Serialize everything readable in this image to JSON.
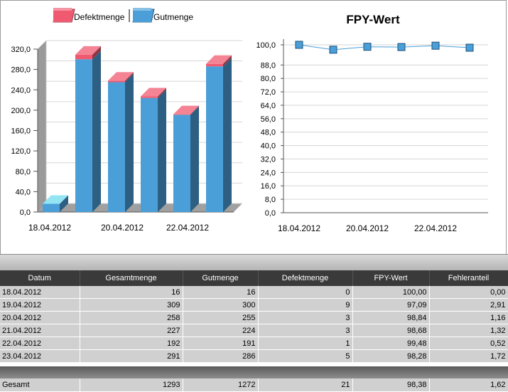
{
  "chart_data": [
    {
      "type": "bar",
      "stacked": true,
      "title": "",
      "categories": [
        "18.04.2012",
        "19.04.2012",
        "20.04.2012",
        "21.04.2012",
        "22.04.2012",
        "23.04.2012"
      ],
      "x_tick_labels": [
        "18.04.2012",
        "20.04.2012",
        "22.04.2012"
      ],
      "series": [
        {
          "name": "Gutmenge",
          "values": [
            16,
            300,
            255,
            224,
            191,
            286
          ],
          "color": "#4a9fd8"
        },
        {
          "name": "Defektmenge",
          "values": [
            0,
            9,
            3,
            3,
            1,
            5
          ],
          "color": "#f05a70"
        }
      ],
      "ylim": [
        0,
        320
      ],
      "y_ticks": [
        "0,0",
        "40,0",
        "80,0",
        "120,0",
        "160,0",
        "200,0",
        "240,0",
        "280,0",
        "320,0"
      ],
      "legend_position": "top",
      "legend": [
        {
          "name": "Defektmenge",
          "color": "#f05a70"
        },
        {
          "name": "Gutmenge",
          "color": "#4a9fd8"
        }
      ],
      "grid": true
    },
    {
      "type": "line",
      "title": "FPY-Wert",
      "categories": [
        "18.04.2012",
        "19.04.2012",
        "20.04.2012",
        "21.04.2012",
        "22.04.2012",
        "23.04.2012"
      ],
      "x_tick_labels": [
        "18.04.2012",
        "20.04.2012",
        "22.04.2012"
      ],
      "series": [
        {
          "name": "FPY-Wert",
          "values": [
            100.0,
            97.09,
            98.84,
            98.68,
            99.48,
            98.28
          ],
          "color": "#4a9fd8"
        }
      ],
      "ylim": [
        0,
        100
      ],
      "y_ticks": [
        "0,0",
        "8,0",
        "16,0",
        "24,0",
        "32,0",
        "40,0",
        "48,0",
        "56,0",
        "64,0",
        "72,0",
        "80,0",
        "88,0",
        "100,0"
      ],
      "y_tick_values": [
        0,
        8,
        16,
        24,
        32,
        40,
        48,
        56,
        64,
        72,
        80,
        88,
        100
      ],
      "grid": true
    }
  ],
  "table": {
    "headers": [
      "Datum",
      "Gesamtmenge",
      "Gutmenge",
      "Defektmenge",
      "FPY-Wert",
      "Fehleranteil"
    ],
    "rows": [
      [
        "18.04.2012",
        "16",
        "16",
        "0",
        "100,00",
        "0,00"
      ],
      [
        "19.04.2012",
        "309",
        "300",
        "9",
        "97,09",
        "2,91"
      ],
      [
        "20.04.2012",
        "258",
        "255",
        "3",
        "98,84",
        "1,16"
      ],
      [
        "21.04.2012",
        "227",
        "224",
        "3",
        "98,68",
        "1,32"
      ],
      [
        "22.04.2012",
        "192",
        "191",
        "1",
        "99,48",
        "0,52"
      ],
      [
        "23.04.2012",
        "291",
        "286",
        "5",
        "98,28",
        "1,72"
      ]
    ],
    "total": [
      "Gesamt",
      "1293",
      "1272",
      "21",
      "98,38",
      "1,62"
    ]
  }
}
